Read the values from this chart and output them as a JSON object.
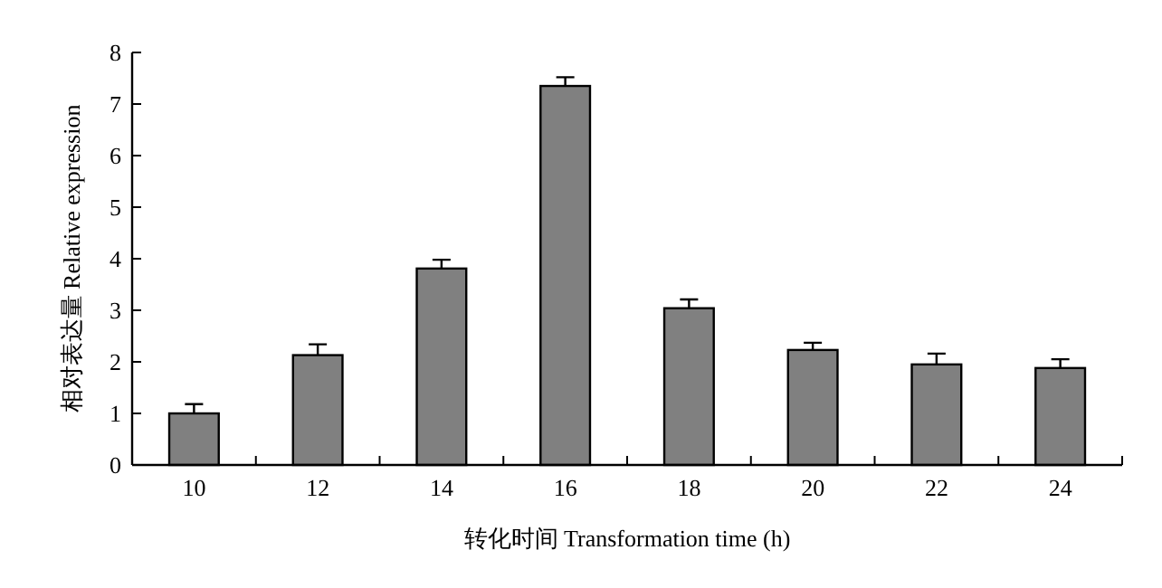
{
  "chart_data": {
    "type": "bar",
    "xlabel": "转化时间 Transformation time (h)",
    "ylabel": "相对表达量 Relative expression",
    "categories": [
      "10",
      "12",
      "14",
      "16",
      "18",
      "20",
      "22",
      "24"
    ],
    "values": [
      1.0,
      2.13,
      3.81,
      7.35,
      3.04,
      2.23,
      1.95,
      1.88
    ],
    "errors": [
      0.18,
      0.21,
      0.17,
      0.17,
      0.17,
      0.14,
      0.21,
      0.17
    ],
    "color": "#808080",
    "ylim": [
      0,
      8
    ],
    "yticks": [
      0,
      1,
      2,
      3,
      4,
      5,
      6,
      7,
      8
    ]
  }
}
